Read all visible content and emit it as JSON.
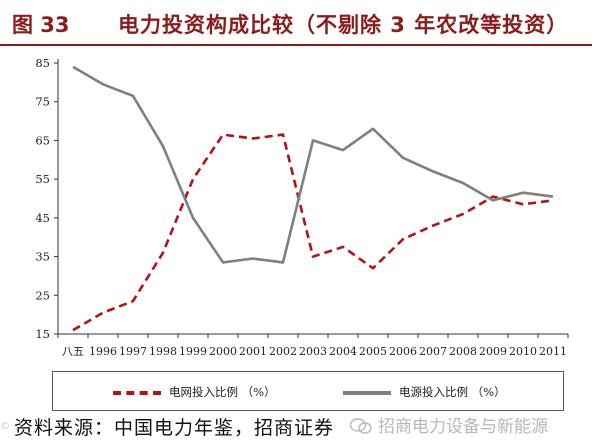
{
  "header": {
    "figure_number": "图 33",
    "title": "电力投资构成比较（不剔除 3 年农改等投资）"
  },
  "footer": {
    "source": "资料来源：中国电力年鉴，招商证券",
    "watermark": "招商电力设备与新能源",
    "corner_badge": "©"
  },
  "chart_data": {
    "type": "line",
    "title": "电力投资构成比较（不剔除 3 年农改等投资）",
    "x": [
      "八五",
      "1996",
      "1997",
      "1998",
      "1999",
      "2000",
      "2001",
      "2002",
      "2003",
      "2004",
      "2005",
      "2006",
      "2007",
      "2008",
      "2009",
      "2010",
      "2011"
    ],
    "ylim": [
      15,
      85
    ],
    "yticks": [
      15,
      25,
      35,
      45,
      55,
      65,
      75,
      85
    ],
    "grid": false,
    "legend": "bottom",
    "series": [
      {
        "name": "电网投入比例 （%）",
        "color": "#b01414",
        "style": "dashed",
        "values": [
          16,
          20.5,
          23.5,
          36,
          55,
          66.5,
          65.5,
          66.5,
          35,
          37.5,
          32,
          39.5,
          43,
          46,
          50.5,
          48.5,
          49.5
        ]
      },
      {
        "name": "电源投入比例 （%）",
        "color": "#7f7f7f",
        "style": "solid",
        "values": [
          84,
          79.5,
          76.5,
          63.5,
          45,
          33.5,
          34.5,
          33.5,
          65,
          62.5,
          68,
          60.5,
          57,
          54,
          49.5,
          51.5,
          50.5
        ]
      }
    ]
  }
}
